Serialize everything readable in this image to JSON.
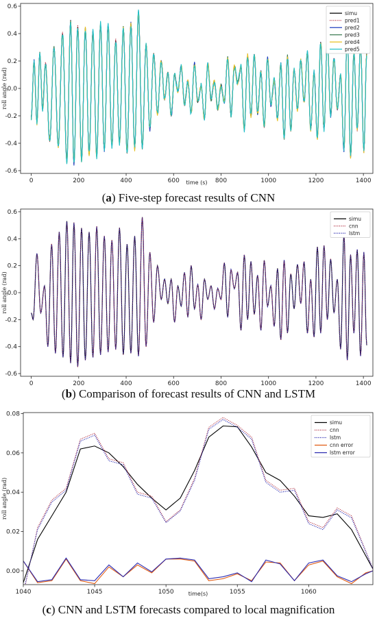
{
  "chart_data": [
    {
      "type": "line",
      "caption_label": "a",
      "caption_text": "Five-step forecast results of CNN",
      "xlabel": "time (s)",
      "ylabel": "roll angle (rad)",
      "xlim": [
        -45,
        1440
      ],
      "ylim": [
        -0.62,
        0.62
      ],
      "xticks": [
        0,
        200,
        400,
        600,
        800,
        1000,
        1200,
        1400
      ],
      "yticks": [
        -0.6,
        -0.4,
        -0.2,
        0.0,
        0.2,
        0.4,
        0.6
      ],
      "ytick_labels": [
        "-0.6",
        "-0.4",
        "-0.2",
        "0.0",
        "0.2",
        "0.4",
        "0.6"
      ],
      "legend_position": "top-right",
      "series": [
        {
          "name": "simu",
          "color": "#000000",
          "dash": "solid"
        },
        {
          "name": "pred1",
          "color": "#b5394a",
          "dash": "dotted"
        },
        {
          "name": "pred2",
          "color": "#1f3fbf",
          "dash": "solid"
        },
        {
          "name": "pred3",
          "color": "#3a7a50",
          "dash": "solid"
        },
        {
          "name": "pred4",
          "color": "#e6c020",
          "dash": "solid"
        },
        {
          "name": "pred5",
          "color": "#20c0c8",
          "dash": "solid"
        }
      ],
      "peaks": [
        [
          0,
          -0.21
        ],
        [
          12,
          0.2
        ],
        [
          24,
          -0.25
        ],
        [
          36,
          0.25
        ],
        [
          48,
          -0.15
        ],
        [
          60,
          0.18
        ],
        [
          78,
          -0.38
        ],
        [
          96,
          0.3
        ],
        [
          114,
          -0.42
        ],
        [
          132,
          0.4
        ],
        [
          150,
          -0.53
        ],
        [
          166,
          0.49
        ],
        [
          180,
          -0.55
        ],
        [
          196,
          0.45
        ],
        [
          212,
          -0.52
        ],
        [
          228,
          0.44
        ],
        [
          244,
          -0.48
        ],
        [
          260,
          0.42
        ],
        [
          276,
          -0.5
        ],
        [
          292,
          0.47
        ],
        [
          308,
          -0.45
        ],
        [
          324,
          0.46
        ],
        [
          340,
          -0.42
        ],
        [
          356,
          0.35
        ],
        [
          372,
          -0.4
        ],
        [
          388,
          0.44
        ],
        [
          404,
          -0.47
        ],
        [
          420,
          0.47
        ],
        [
          436,
          -0.44
        ],
        [
          452,
          0.56
        ],
        [
          468,
          -0.43
        ],
        [
          484,
          0.32
        ],
        [
          500,
          -0.3
        ],
        [
          516,
          0.25
        ],
        [
          532,
          -0.18
        ],
        [
          548,
          0.2
        ],
        [
          562,
          -0.08
        ],
        [
          576,
          0.12
        ],
        [
          590,
          -0.2
        ],
        [
          604,
          0.1
        ],
        [
          618,
          -0.02
        ],
        [
          632,
          0.16
        ],
        [
          646,
          -0.12
        ],
        [
          660,
          0.05
        ],
        [
          674,
          -0.18
        ],
        [
          688,
          0.18
        ],
        [
          702,
          -0.1
        ],
        [
          716,
          0.02
        ],
        [
          730,
          -0.22
        ],
        [
          744,
          0.18
        ],
        [
          758,
          -0.08
        ],
        [
          772,
          0.05
        ],
        [
          786,
          -0.15
        ],
        [
          800,
          0.02
        ],
        [
          814,
          -0.1
        ],
        [
          828,
          0.22
        ],
        [
          842,
          -0.2
        ],
        [
          856,
          0.16
        ],
        [
          870,
          0.04
        ],
        [
          884,
          0.16
        ],
        [
          898,
          -0.3
        ],
        [
          912,
          0.24
        ],
        [
          926,
          -0.2
        ],
        [
          940,
          0.25
        ],
        [
          954,
          -0.18
        ],
        [
          968,
          0.12
        ],
        [
          982,
          -0.28
        ],
        [
          996,
          0.22
        ],
        [
          1010,
          -0.12
        ],
        [
          1024,
          0.06
        ],
        [
          1038,
          -0.22
        ],
        [
          1052,
          0.18
        ],
        [
          1066,
          -0.36
        ],
        [
          1080,
          0.23
        ],
        [
          1094,
          -0.3
        ],
        [
          1108,
          0.14
        ],
        [
          1122,
          -0.15
        ],
        [
          1136,
          0.2
        ],
        [
          1150,
          -0.1
        ],
        [
          1164,
          0.26
        ],
        [
          1178,
          -0.3
        ],
        [
          1192,
          0.12
        ],
        [
          1206,
          -0.36
        ],
        [
          1220,
          0.34
        ],
        [
          1234,
          -0.3
        ],
        [
          1248,
          0.36
        ],
        [
          1262,
          -0.2
        ],
        [
          1276,
          0.22
        ],
        [
          1290,
          -0.15
        ],
        [
          1304,
          0.1
        ],
        [
          1318,
          -0.45
        ],
        [
          1332,
          0.42
        ],
        [
          1346,
          -0.5
        ],
        [
          1360,
          0.26
        ],
        [
          1374,
          -0.3
        ],
        [
          1388,
          0.32
        ],
        [
          1402,
          -0.46
        ],
        [
          1414,
          0.26
        ]
      ]
    },
    {
      "type": "line",
      "caption_label": "b",
      "caption_text": "Comparison of forecast results of CNN and LSTM",
      "xlabel": "",
      "ylabel": "roll angle (rad)",
      "xlim": [
        -45,
        1440
      ],
      "ylim": [
        -0.62,
        0.62
      ],
      "xticks": [
        0,
        200,
        400,
        600,
        800,
        1000,
        1200,
        1400
      ],
      "yticks": [
        -0.6,
        -0.4,
        -0.2,
        0.0,
        0.2,
        0.4,
        0.6
      ],
      "ytick_labels": [
        "-0.6",
        "-0.4",
        "-0.2",
        "0.0",
        "0.2",
        "0.4",
        "0.6"
      ],
      "legend_position": "top-right",
      "series": [
        {
          "name": "simu",
          "color": "#000000",
          "dash": "solid"
        },
        {
          "name": "cnn",
          "color": "#b5394a",
          "dash": "dotted"
        },
        {
          "name": "lstm",
          "color": "#2a2ab0",
          "dash": "dotted"
        }
      ],
      "peaks": [
        [
          0,
          -0.15
        ],
        [
          8,
          -0.2
        ],
        [
          24,
          0.29
        ],
        [
          40,
          -0.15
        ],
        [
          56,
          0.05
        ],
        [
          70,
          -0.4
        ],
        [
          86,
          0.36
        ],
        [
          102,
          -0.45
        ],
        [
          118,
          0.45
        ],
        [
          134,
          -0.48
        ],
        [
          150,
          0.53
        ],
        [
          166,
          -0.52
        ],
        [
          180,
          0.52
        ],
        [
          196,
          -0.55
        ],
        [
          212,
          0.48
        ],
        [
          228,
          -0.5
        ],
        [
          244,
          0.45
        ],
        [
          260,
          -0.48
        ],
        [
          276,
          0.49
        ],
        [
          292,
          -0.46
        ],
        [
          308,
          0.42
        ],
        [
          324,
          -0.44
        ],
        [
          340,
          0.39
        ],
        [
          356,
          -0.42
        ],
        [
          372,
          0.48
        ],
        [
          388,
          -0.46
        ],
        [
          404,
          0.36
        ],
        [
          420,
          -0.45
        ],
        [
          436,
          0.42
        ],
        [
          452,
          -0.47
        ],
        [
          468,
          0.56
        ],
        [
          484,
          -0.4
        ],
        [
          500,
          0.3
        ],
        [
          516,
          -0.22
        ],
        [
          532,
          0.2
        ],
        [
          548,
          -0.05
        ],
        [
          562,
          0.1
        ],
        [
          576,
          -0.08
        ],
        [
          590,
          0.1
        ],
        [
          604,
          -0.22
        ],
        [
          618,
          0.05
        ],
        [
          632,
          -0.1
        ],
        [
          646,
          0.15
        ],
        [
          660,
          -0.18
        ],
        [
          674,
          0.2
        ],
        [
          688,
          -0.12
        ],
        [
          702,
          0.06
        ],
        [
          716,
          -0.2
        ],
        [
          730,
          0.1
        ],
        [
          744,
          -0.05
        ],
        [
          758,
          0.05
        ],
        [
          772,
          -0.12
        ],
        [
          786,
          0.03
        ],
        [
          800,
          -0.05
        ],
        [
          814,
          0.22
        ],
        [
          828,
          -0.18
        ],
        [
          842,
          0.17
        ],
        [
          856,
          0.03
        ],
        [
          870,
          0.15
        ],
        [
          884,
          -0.28
        ],
        [
          898,
          0.28
        ],
        [
          912,
          -0.2
        ],
        [
          926,
          0.23
        ],
        [
          940,
          -0.16
        ],
        [
          954,
          0.13
        ],
        [
          968,
          -0.28
        ],
        [
          982,
          0.24
        ],
        [
          996,
          -0.1
        ],
        [
          1010,
          0.05
        ],
        [
          1024,
          -0.25
        ],
        [
          1038,
          0.18
        ],
        [
          1052,
          -0.35
        ],
        [
          1066,
          0.24
        ],
        [
          1080,
          -0.3
        ],
        [
          1094,
          0.14
        ],
        [
          1108,
          -0.12
        ],
        [
          1122,
          0.21
        ],
        [
          1136,
          -0.08
        ],
        [
          1150,
          0.23
        ],
        [
          1164,
          -0.3
        ],
        [
          1178,
          0.1
        ],
        [
          1192,
          -0.33
        ],
        [
          1206,
          0.34
        ],
        [
          1220,
          -0.3
        ],
        [
          1234,
          0.35
        ],
        [
          1248,
          -0.2
        ],
        [
          1262,
          0.25
        ],
        [
          1276,
          -0.15
        ],
        [
          1290,
          0.1
        ],
        [
          1304,
          -0.42
        ],
        [
          1318,
          0.43
        ],
        [
          1332,
          -0.5
        ],
        [
          1346,
          0.28
        ],
        [
          1360,
          -0.3
        ],
        [
          1374,
          0.32
        ],
        [
          1388,
          -0.47
        ],
        [
          1402,
          0.3
        ],
        [
          1414,
          -0.39
        ]
      ]
    },
    {
      "type": "line",
      "caption_label": "c",
      "caption_text": "CNN and LSTM forecasts compared to local magnification",
      "xlabel": "time(s)",
      "ylabel": "roll angle (rad)",
      "xlim": [
        1040,
        1064.5
      ],
      "ylim": [
        -0.007,
        0.0805
      ],
      "xticks": [
        1040,
        1045,
        1050,
        1055,
        1060
      ],
      "yticks": [
        0.0,
        0.02,
        0.04,
        0.06,
        0.08
      ],
      "ytick_labels": [
        "0.00",
        "0.02",
        "0.04",
        "0.06",
        "0.08"
      ],
      "legend_position": "top-right",
      "series": [
        {
          "name": "simu",
          "color": "#000000",
          "dash": "solid",
          "x": [
            1040,
            1041,
            1042,
            1043,
            1044,
            1045,
            1046,
            1047,
            1048,
            1049,
            1050,
            1051,
            1052,
            1053,
            1054,
            1055,
            1056,
            1057,
            1058,
            1059,
            1060,
            1061,
            1062,
            1063,
            1064.5
          ],
          "y": [
            -0.006,
            0.016,
            0.028,
            0.04,
            0.062,
            0.0635,
            0.06,
            0.053,
            0.044,
            0.037,
            0.031,
            0.037,
            0.051,
            0.068,
            0.0737,
            0.0733,
            0.063,
            0.05,
            0.046,
            0.038,
            0.028,
            0.0272,
            0.029,
            0.021,
            0.001
          ]
        },
        {
          "name": "cnn",
          "color": "#b5394a",
          "dash": "dotted",
          "x": [
            1040,
            1041,
            1042,
            1043,
            1044,
            1045,
            1046,
            1047,
            1048,
            1049,
            1050,
            1051,
            1052,
            1053,
            1054,
            1055,
            1056,
            1057,
            1058,
            1059,
            1060,
            1061,
            1062,
            1063,
            1064.5
          ],
          "y": [
            -0.012,
            0.022,
            0.036,
            0.042,
            0.067,
            0.07,
            0.057,
            0.055,
            0.04,
            0.038,
            0.025,
            0.031,
            0.047,
            0.073,
            0.078,
            0.074,
            0.068,
            0.046,
            0.041,
            0.042,
            0.025,
            0.022,
            0.032,
            0.028,
            0.001
          ]
        },
        {
          "name": "lstm",
          "color": "#2a2ab0",
          "dash": "dotted",
          "x": [
            1040,
            1041,
            1042,
            1043,
            1044,
            1045,
            1046,
            1047,
            1048,
            1049,
            1050,
            1051,
            1052,
            1053,
            1054,
            1055,
            1056,
            1057,
            1058,
            1059,
            1060,
            1061,
            1062,
            1063,
            1064.5
          ],
          "y": [
            -0.011,
            0.021,
            0.035,
            0.041,
            0.066,
            0.069,
            0.056,
            0.054,
            0.039,
            0.037,
            0.0245,
            0.0305,
            0.046,
            0.072,
            0.077,
            0.073,
            0.067,
            0.045,
            0.04,
            0.041,
            0.024,
            0.021,
            0.031,
            0.027,
            0.001
          ]
        },
        {
          "name": "cnn error",
          "color": "#e05a10",
          "dash": "solid",
          "x": [
            1040,
            1041,
            1042,
            1043,
            1044,
            1045,
            1046,
            1047,
            1048,
            1049,
            1050,
            1051,
            1052,
            1053,
            1054,
            1055,
            1056,
            1057,
            1058,
            1059,
            1060,
            1061,
            1062,
            1063,
            1064,
            1064.5
          ],
          "y": [
            0.005,
            -0.006,
            -0.005,
            0.006,
            -0.005,
            -0.0065,
            0.002,
            -0.003,
            0.003,
            -0.001,
            0.006,
            0.006,
            0.005,
            -0.005,
            -0.004,
            -0.0015,
            -0.005,
            0.0045,
            0.004,
            -0.005,
            0.003,
            0.005,
            -0.003,
            -0.0065,
            -0.001,
            0.0
          ]
        },
        {
          "name": "lstm error",
          "color": "#2a2ab0",
          "dash": "solid",
          "x": [
            1040,
            1041,
            1042,
            1043,
            1044,
            1045,
            1046,
            1047,
            1048,
            1049,
            1050,
            1051,
            1052,
            1053,
            1054,
            1055,
            1056,
            1057,
            1058,
            1059,
            1060,
            1061,
            1062,
            1063,
            1064,
            1064.5
          ],
          "y": [
            0.005,
            -0.0055,
            -0.0045,
            0.0065,
            -0.0045,
            -0.005,
            0.003,
            -0.003,
            0.004,
            -0.0005,
            0.006,
            0.0065,
            0.0055,
            -0.004,
            -0.003,
            -0.001,
            -0.0055,
            0.0055,
            0.0035,
            -0.005,
            0.004,
            0.0055,
            -0.0025,
            -0.0055,
            -0.0015,
            0.0
          ]
        }
      ]
    }
  ]
}
